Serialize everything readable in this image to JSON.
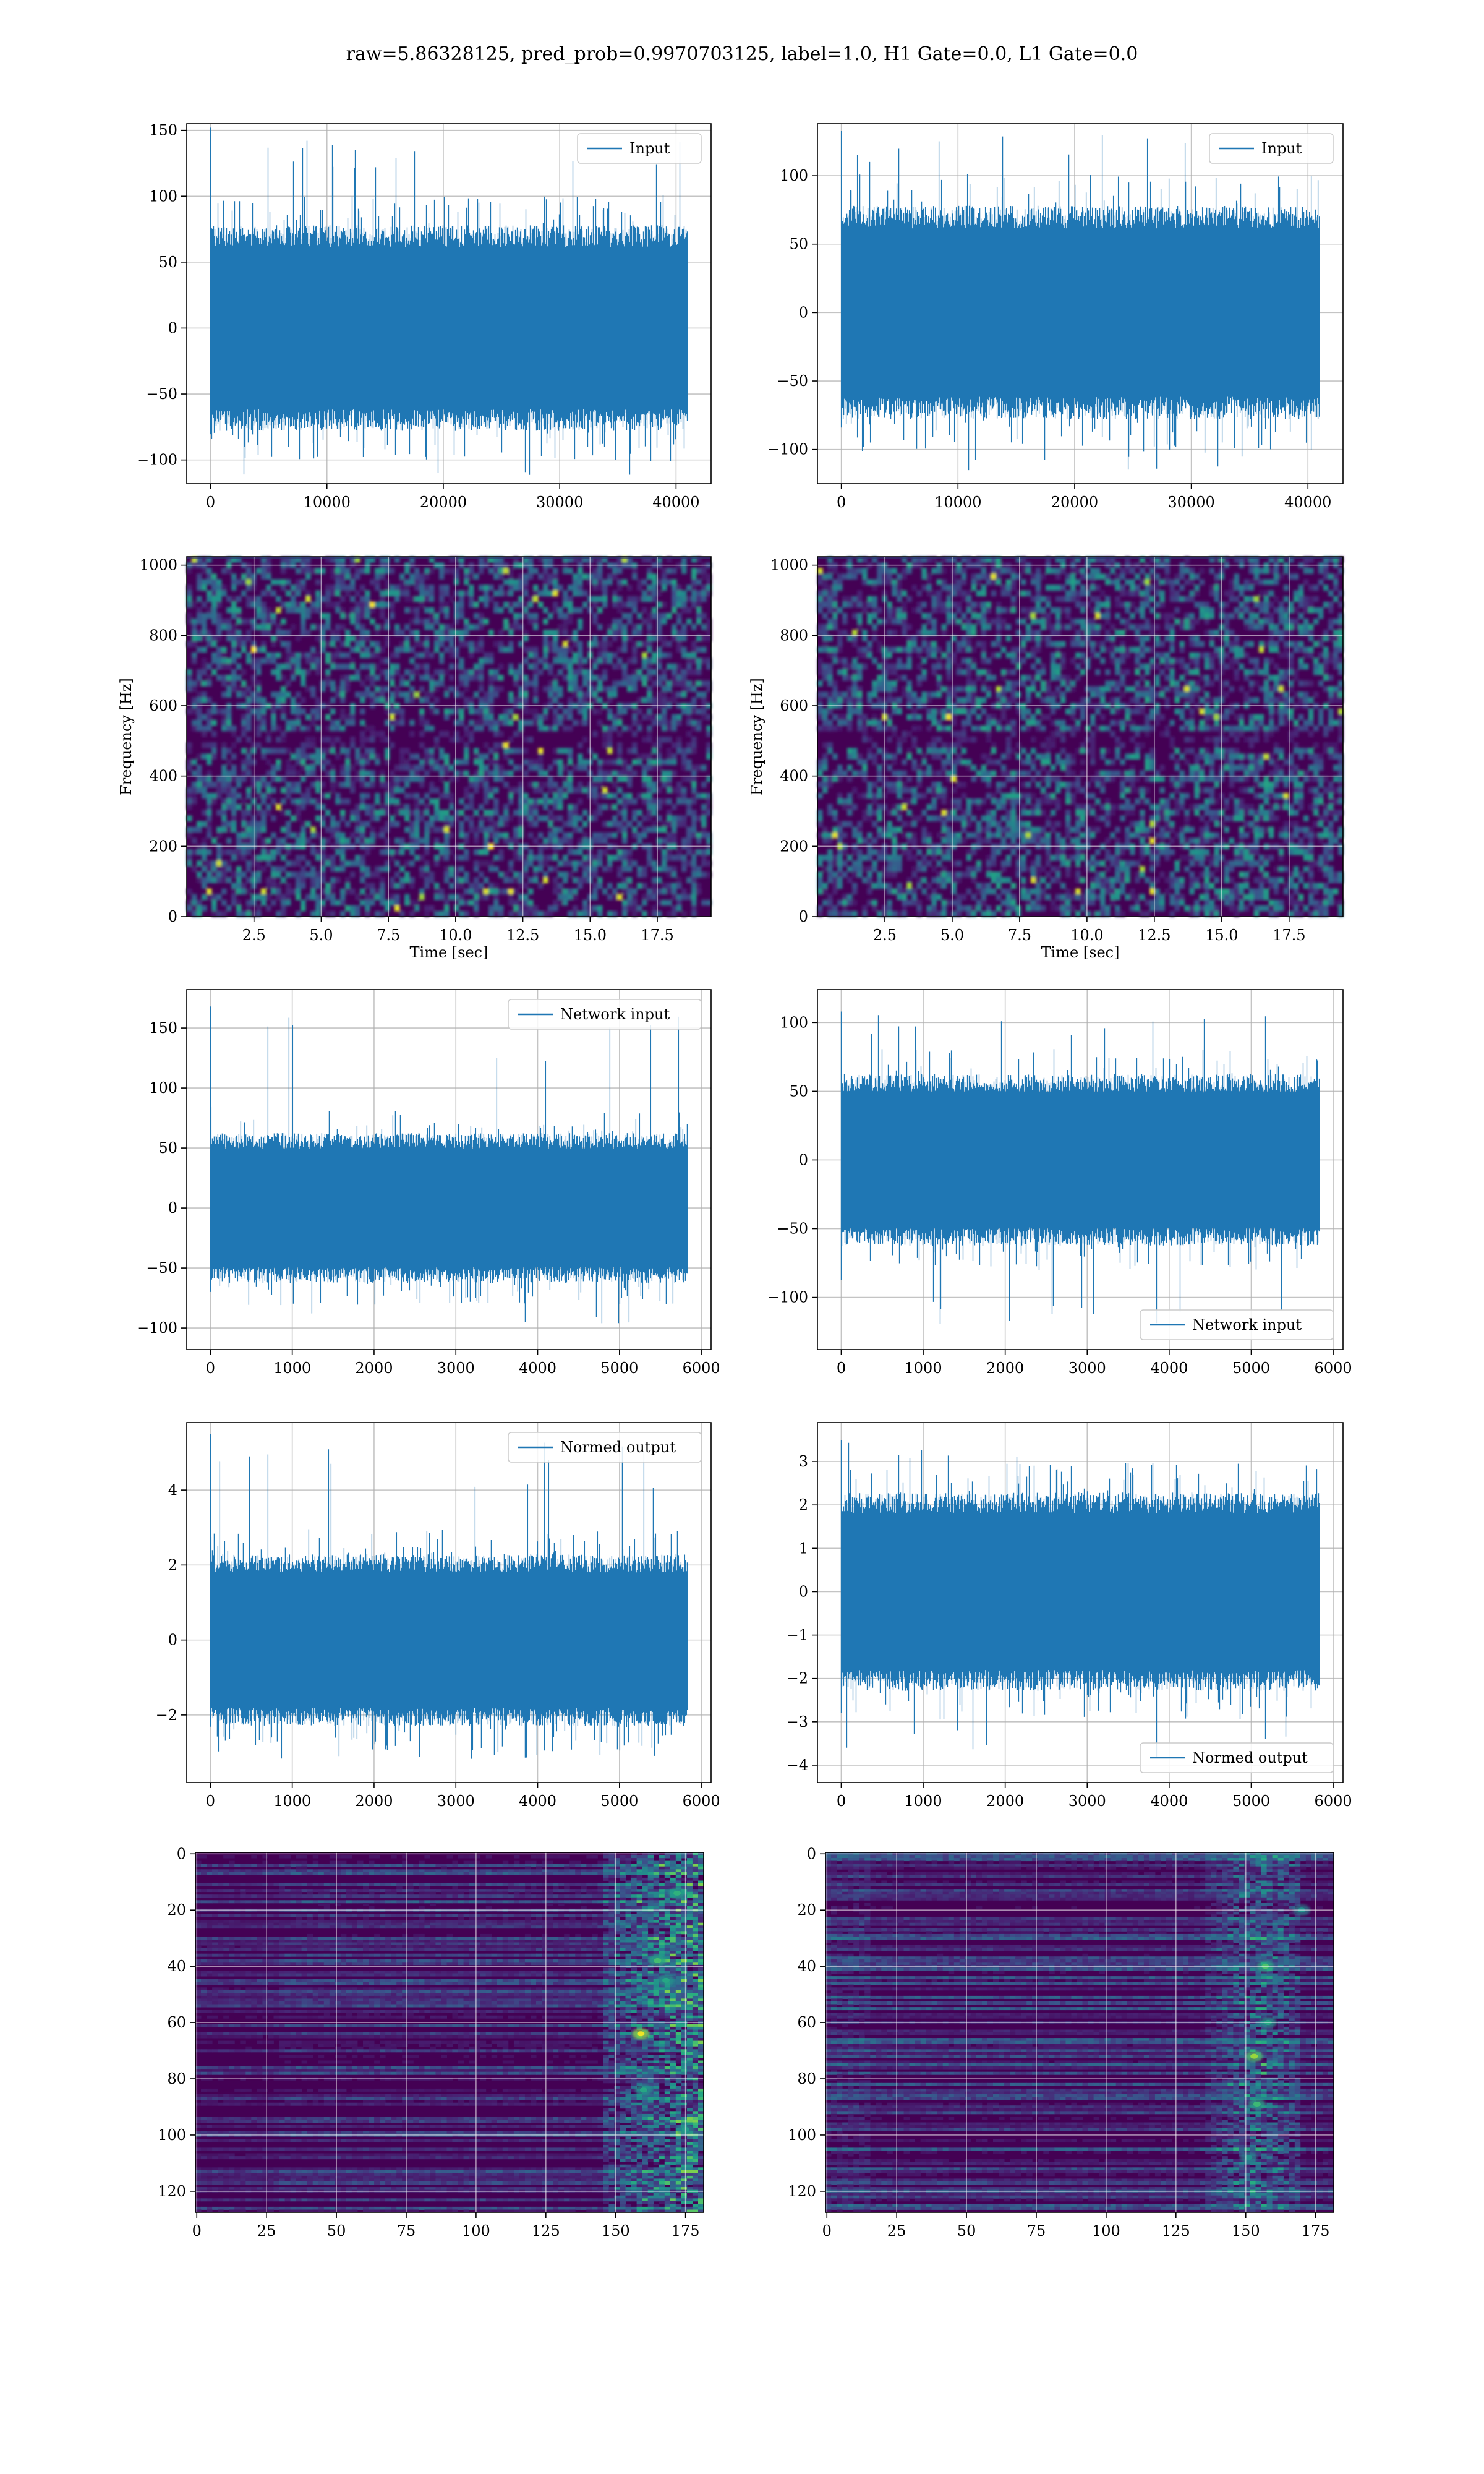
{
  "figure": {
    "title": "raw=5.86328125, pred_prob=0.9970703125, label=1.0, H1 Gate=0.0, L1 Gate=0.0"
  },
  "colors": {
    "line": "#1f77b4",
    "viridis_dark": "#440154",
    "viridis_mid": "#31688e",
    "viridis_green": "#35b779",
    "viridis_yellow": "#fde725",
    "grid": "#b0b0b0"
  },
  "chart_data": [
    {
      "id": "input-h1",
      "type": "line",
      "xlim": [
        -2048,
        43008
      ],
      "ylim": [
        -118,
        155
      ],
      "x_ticks": [
        0,
        10000,
        20000,
        30000,
        40000
      ],
      "y_ticks": [
        -100,
        -50,
        0,
        50,
        100,
        150
      ],
      "x_tick_labels": [
        "0",
        "10000",
        "20000",
        "30000",
        "40000"
      ],
      "y_tick_labels": [
        "−100",
        "−50",
        "0",
        "50",
        "100",
        "150"
      ],
      "signal": {
        "x_start": 0,
        "x_end": 40960,
        "env_low": -75,
        "env_high": 75,
        "spike_max": 152,
        "spike_min": -115
      },
      "xlabel": "",
      "ylabel": "",
      "legend": {
        "label": "Input",
        "loc": "upper right"
      },
      "grid": true
    },
    {
      "id": "input-l1",
      "type": "line",
      "xlim": [
        -2048,
        43008
      ],
      "ylim": [
        -125,
        138
      ],
      "x_ticks": [
        0,
        10000,
        20000,
        30000,
        40000
      ],
      "y_ticks": [
        -100,
        -50,
        0,
        50,
        100
      ],
      "x_tick_labels": [
        "0",
        "10000",
        "20000",
        "30000",
        "40000"
      ],
      "y_tick_labels": [
        "−100",
        "−50",
        "0",
        "50",
        "100"
      ],
      "signal": {
        "x_start": 0,
        "x_end": 40960,
        "env_low": -75,
        "env_high": 75,
        "spike_max": 133,
        "spike_min": -120
      },
      "xlabel": "",
      "ylabel": "",
      "legend": {
        "label": "Input",
        "loc": "upper right"
      },
      "grid": true
    },
    {
      "id": "spec-h1",
      "type": "heatmap",
      "colormap": "viridis",
      "xlim": [
        0,
        19.5
      ],
      "ylim": [
        0,
        1024
      ],
      "x_ticks": [
        2.5,
        5.0,
        7.5,
        10.0,
        12.5,
        15.0,
        17.5
      ],
      "y_ticks": [
        0,
        200,
        400,
        600,
        800,
        1000
      ],
      "x_tick_labels": [
        "2.5",
        "5.0",
        "7.5",
        "10.0",
        "12.5",
        "15.0",
        "17.5"
      ],
      "y_tick_labels": [
        "0",
        "200",
        "400",
        "600",
        "800",
        "1000"
      ],
      "xlabel": "Time [sec]",
      "ylabel": "Frequency [Hz]",
      "grid": true
    },
    {
      "id": "spec-l1",
      "type": "heatmap",
      "colormap": "viridis",
      "xlim": [
        0,
        19.5
      ],
      "ylim": [
        0,
        1024
      ],
      "x_ticks": [
        2.5,
        5.0,
        7.5,
        10.0,
        12.5,
        15.0,
        17.5
      ],
      "y_ticks": [
        0,
        200,
        400,
        600,
        800,
        1000
      ],
      "x_tick_labels": [
        "2.5",
        "5.0",
        "7.5",
        "10.0",
        "12.5",
        "15.0",
        "17.5"
      ],
      "y_tick_labels": [
        "0",
        "200",
        "400",
        "600",
        "800",
        "1000"
      ],
      "xlabel": "Time [sec]",
      "ylabel": "Frequency [Hz]",
      "grid": true
    },
    {
      "id": "net-h1",
      "type": "line",
      "xlim": [
        -290,
        6120
      ],
      "ylim": [
        -118,
        182
      ],
      "x_ticks": [
        0,
        1000,
        2000,
        3000,
        4000,
        5000,
        6000
      ],
      "y_ticks": [
        -100,
        -50,
        0,
        50,
        100,
        150
      ],
      "x_tick_labels": [
        "0",
        "1000",
        "2000",
        "3000",
        "4000",
        "5000",
        "6000"
      ],
      "y_tick_labels": [
        "−100",
        "−50",
        "0",
        "50",
        "100",
        "150"
      ],
      "signal": {
        "x_start": 0,
        "x_end": 5830,
        "env_low": -60,
        "env_high": 60,
        "spike_max": 168,
        "spike_min": -100
      },
      "xlabel": "",
      "ylabel": "",
      "legend": {
        "label": "Network input",
        "loc": "upper right"
      },
      "grid": true
    },
    {
      "id": "net-l1",
      "type": "line",
      "xlim": [
        -290,
        6120
      ],
      "ylim": [
        -138,
        124
      ],
      "x_ticks": [
        0,
        1000,
        2000,
        3000,
        4000,
        5000,
        6000
      ],
      "y_ticks": [
        -100,
        -50,
        0,
        50,
        100
      ],
      "x_tick_labels": [
        "0",
        "1000",
        "2000",
        "3000",
        "4000",
        "5000",
        "6000"
      ],
      "y_tick_labels": [
        "−100",
        "−50",
        "0",
        "50",
        "100"
      ],
      "signal": {
        "x_start": 0,
        "x_end": 5830,
        "env_low": -60,
        "env_high": 60,
        "spike_max": 108,
        "spike_min": -125
      },
      "xlabel": "",
      "ylabel": "",
      "legend": {
        "label": "Network input",
        "loc": "lower right"
      },
      "grid": true
    },
    {
      "id": "norm-h1",
      "type": "line",
      "xlim": [
        -290,
        6120
      ],
      "ylim": [
        -3.8,
        5.8
      ],
      "x_ticks": [
        0,
        1000,
        2000,
        3000,
        4000,
        5000,
        6000
      ],
      "y_ticks": [
        -2,
        0,
        2,
        4
      ],
      "x_tick_labels": [
        "0",
        "1000",
        "2000",
        "3000",
        "4000",
        "5000",
        "6000"
      ],
      "y_tick_labels": [
        "−2",
        "0",
        "2",
        "4"
      ],
      "signal": {
        "x_start": 0,
        "x_end": 5830,
        "env_low": -2.2,
        "env_high": 2.2,
        "spike_max": 5.5,
        "spike_min": -3.3
      },
      "xlabel": "",
      "ylabel": "",
      "legend": {
        "label": "Normed output",
        "loc": "upper right"
      },
      "grid": true
    },
    {
      "id": "norm-l1",
      "type": "line",
      "xlim": [
        -290,
        6120
      ],
      "ylim": [
        -4.4,
        3.9
      ],
      "x_ticks": [
        0,
        1000,
        2000,
        3000,
        4000,
        5000,
        6000
      ],
      "y_ticks": [
        -4,
        -3,
        -2,
        -1,
        0,
        1,
        2,
        3
      ],
      "x_tick_labels": [
        "0",
        "1000",
        "2000",
        "3000",
        "4000",
        "5000",
        "6000"
      ],
      "y_tick_labels": [
        "−4",
        "−3",
        "−2",
        "−1",
        "0",
        "1",
        "2",
        "3"
      ],
      "signal": {
        "x_start": 0,
        "x_end": 5830,
        "env_low": -2.2,
        "env_high": 2.2,
        "spike_max": 3.5,
        "spike_min": -4.0
      },
      "xlabel": "",
      "ylabel": "",
      "legend": {
        "label": "Normed output",
        "loc": "lower right"
      },
      "grid": true
    },
    {
      "id": "feat-h1",
      "type": "heatmap",
      "colormap": "viridis",
      "xlim": [
        -0.5,
        181.5
      ],
      "ylim": [
        127.5,
        -0.5
      ],
      "x_ticks": [
        0,
        25,
        50,
        75,
        100,
        125,
        150,
        175
      ],
      "y_ticks": [
        0,
        20,
        40,
        60,
        80,
        100,
        120
      ],
      "x_tick_labels": [
        "0",
        "25",
        "50",
        "75",
        "100",
        "125",
        "150",
        "175"
      ],
      "y_tick_labels": [
        "0",
        "20",
        "40",
        "60",
        "80",
        "100",
        "120"
      ],
      "xlabel": "",
      "ylabel": "",
      "grid": true
    },
    {
      "id": "feat-l1",
      "type": "heatmap",
      "colormap": "viridis",
      "xlim": [
        -0.5,
        181.5
      ],
      "ylim": [
        127.5,
        -0.5
      ],
      "x_ticks": [
        0,
        25,
        50,
        75,
        100,
        125,
        150,
        175
      ],
      "y_ticks": [
        0,
        20,
        40,
        60,
        80,
        100,
        120
      ],
      "x_tick_labels": [
        "0",
        "25",
        "50",
        "75",
        "100",
        "125",
        "150",
        "175"
      ],
      "y_tick_labels": [
        "0",
        "20",
        "40",
        "60",
        "80",
        "100",
        "120"
      ],
      "xlabel": "",
      "ylabel": "",
      "grid": true
    }
  ]
}
